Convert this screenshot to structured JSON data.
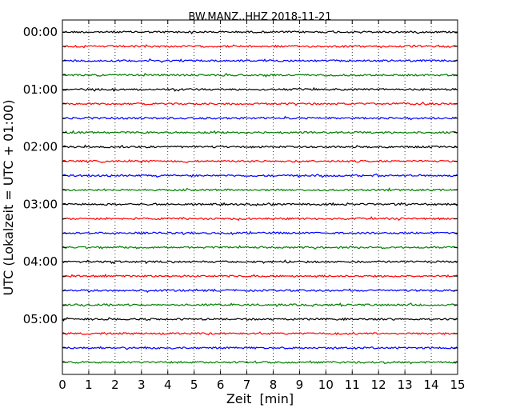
{
  "chart_data": {
    "type": "line",
    "title": "BW.MANZ..HHZ 2018-11-21",
    "xlabel": "Zeit  [min]",
    "ylabel": "UTC (Lokalzeit = UTC + 01:00)",
    "xlim": [
      0,
      15
    ],
    "x_ticks": [
      "0",
      "1",
      "2",
      "3",
      "4",
      "5",
      "6",
      "7",
      "8",
      "9",
      "10",
      "11",
      "12",
      "13",
      "14",
      "15"
    ],
    "y_tick_labels": [
      "00:00",
      "01:00",
      "02:00",
      "03:00",
      "04:00",
      "05:00"
    ],
    "row_interval_minutes": 15,
    "row_count": 24,
    "row_colors": [
      "#000000",
      "#ff0000",
      "#0000ff",
      "#008000"
    ],
    "grid": "vertical dotted at each minute"
  }
}
